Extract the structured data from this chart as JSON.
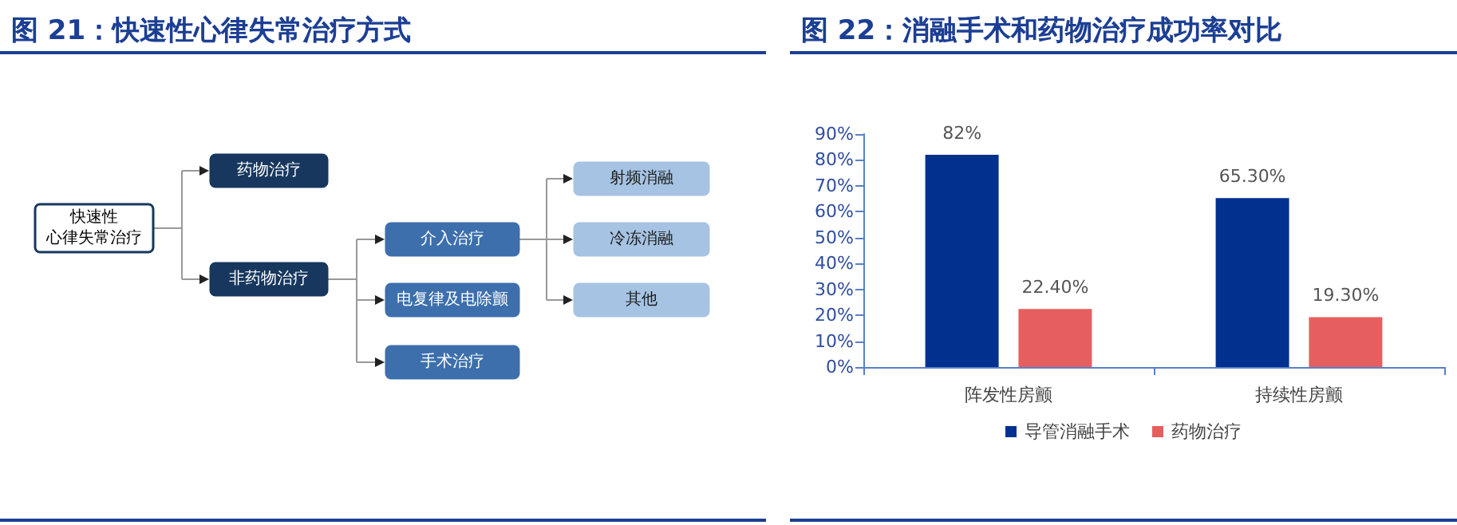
{
  "chart_data": [
    {
      "type": "other",
      "title": "图 21：快速性心律失常治疗方式",
      "annotations": [
        "快速性",
        "心律失常治疗",
        "药物治疗",
        "非药物治疗",
        "介入治疗",
        "电复律及电除颤",
        "手术治疗",
        "射频消融",
        "冷冻消融",
        "其他"
      ]
    },
    {
      "type": "bar",
      "title": "图 22：消融手术和药物治疗成功率对比",
      "categories": [
        "阵发性房颤",
        "持续性房颤"
      ],
      "series": [
        {
          "name": "导管消融手术",
          "color": "#00318f",
          "values": [
            82,
            65.3
          ],
          "value_labels": [
            "82%",
            "65.30%"
          ]
        },
        {
          "name": "药物治疗",
          "color": "#e55f5f",
          "values": [
            22.4,
            19.3
          ],
          "value_labels": [
            "22.40%",
            "19.30%"
          ]
        }
      ],
      "ylim": [
        0,
        90
      ],
      "yticks": [
        {
          "value": 0,
          "label": "0%"
        },
        {
          "value": 10,
          "label": "10%"
        },
        {
          "value": 20,
          "label": "20%"
        },
        {
          "value": 30,
          "label": "30%"
        },
        {
          "value": 40,
          "label": "40%"
        },
        {
          "value": 50,
          "label": "50%"
        },
        {
          "value": 60,
          "label": "60%"
        },
        {
          "value": 70,
          "label": "70%"
        },
        {
          "value": 80,
          "label": "80%"
        },
        {
          "value": 90,
          "label": "90%"
        }
      ],
      "grid": false,
      "legend": "bottom"
    }
  ]
}
